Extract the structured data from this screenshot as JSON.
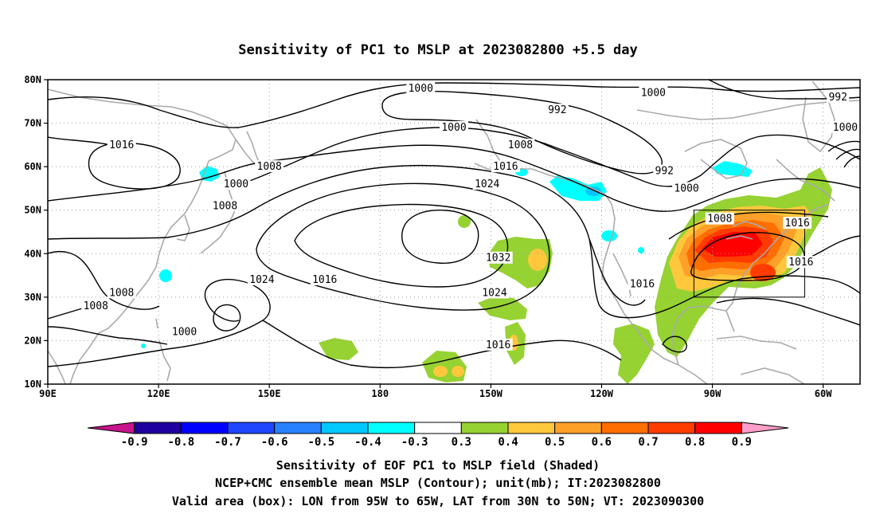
{
  "title": "Sensitivity of PC1 to MSLP at 2023082800 +5.5 day",
  "map": {
    "lon_range": [
      90,
      310
    ],
    "lat_range": [
      10,
      80
    ],
    "lat_ticks": [
      {
        "lat": 80,
        "label": "80N"
      },
      {
        "lat": 70,
        "label": "70N"
      },
      {
        "lat": 60,
        "label": "60N"
      },
      {
        "lat": 50,
        "label": "50N"
      },
      {
        "lat": 40,
        "label": "40N"
      },
      {
        "lat": 30,
        "label": "30N"
      },
      {
        "lat": 20,
        "label": "20N"
      },
      {
        "lat": 10,
        "label": "10N"
      }
    ],
    "lon_ticks": [
      {
        "lon": 90,
        "label": "90E"
      },
      {
        "lon": 120,
        "label": "120E"
      },
      {
        "lon": 150,
        "label": "150E"
      },
      {
        "lon": 180,
        "label": "180"
      },
      {
        "lon": 210,
        "label": "150W"
      },
      {
        "lon": 240,
        "label": "120W"
      },
      {
        "lon": 270,
        "label": "90W"
      },
      {
        "lon": 300,
        "label": "60W"
      }
    ],
    "valid_box": {
      "lon_min": 265,
      "lon_max": 295,
      "lat_min": 30,
      "lat_max": 50
    },
    "contour_labels": [
      {
        "text": "1000",
        "lon": 191,
        "lat": 78
      },
      {
        "text": "1000",
        "lon": 254,
        "lat": 77
      },
      {
        "text": "992",
        "lon": 304,
        "lat": 76
      },
      {
        "text": "992",
        "lon": 228,
        "lat": 73
      },
      {
        "text": "1000",
        "lon": 200,
        "lat": 69
      },
      {
        "text": "1000",
        "lon": 306,
        "lat": 69
      },
      {
        "text": "1016",
        "lon": 110,
        "lat": 65
      },
      {
        "text": "1008",
        "lon": 218,
        "lat": 65
      },
      {
        "text": "1008",
        "lon": 150,
        "lat": 60
      },
      {
        "text": "1016",
        "lon": 214,
        "lat": 60
      },
      {
        "text": "992",
        "lon": 257,
        "lat": 59
      },
      {
        "text": "1000",
        "lon": 141,
        "lat": 56
      },
      {
        "text": "1024",
        "lon": 209,
        "lat": 56
      },
      {
        "text": "1000",
        "lon": 263,
        "lat": 55
      },
      {
        "text": "1008",
        "lon": 138,
        "lat": 51
      },
      {
        "text": "1008",
        "lon": 272,
        "lat": 48
      },
      {
        "text": "1016",
        "lon": 293,
        "lat": 47
      },
      {
        "text": "1032",
        "lon": 212,
        "lat": 39
      },
      {
        "text": "1016",
        "lon": 294,
        "lat": 38
      },
      {
        "text": "1024",
        "lon": 148,
        "lat": 34
      },
      {
        "text": "1016",
        "lon": 165,
        "lat": 34
      },
      {
        "text": "1016",
        "lon": 251,
        "lat": 33
      },
      {
        "text": "1024",
        "lon": 211,
        "lat": 31
      },
      {
        "text": "1008",
        "lon": 110,
        "lat": 31
      },
      {
        "text": "1008",
        "lon": 103,
        "lat": 28
      },
      {
        "text": "1000",
        "lon": 127,
        "lat": 22
      },
      {
        "text": "1016",
        "lon": 212,
        "lat": 19
      }
    ]
  },
  "colorbar": {
    "colors": [
      "#c8148c",
      "#1e00a0",
      "#0000ff",
      "#1e46ff",
      "#2882ff",
      "#00c8ff",
      "#00ffff",
      "#ffffff",
      "#96d232",
      "#ffc83c",
      "#ffa028",
      "#ff6e00",
      "#ff3c00",
      "#ff0000",
      "#ff9ec8"
    ],
    "labels": [
      "-0.9",
      "-0.8",
      "-0.7",
      "-0.6",
      "-0.5",
      "-0.4",
      "-0.3",
      "0.3",
      "0.4",
      "0.5",
      "0.6",
      "0.7",
      "0.8",
      "0.9"
    ]
  },
  "footer": {
    "line1": "Sensitivity of EOF PC1 to MSLP field (Shaded)",
    "line2": "NCEP+CMC ensemble mean MSLP (Contour); unit(mb); IT:2023082800",
    "line3": "Valid area (box): LON from 95W to 65W, LAT from 30N to 50N; VT: 2023090300"
  }
}
